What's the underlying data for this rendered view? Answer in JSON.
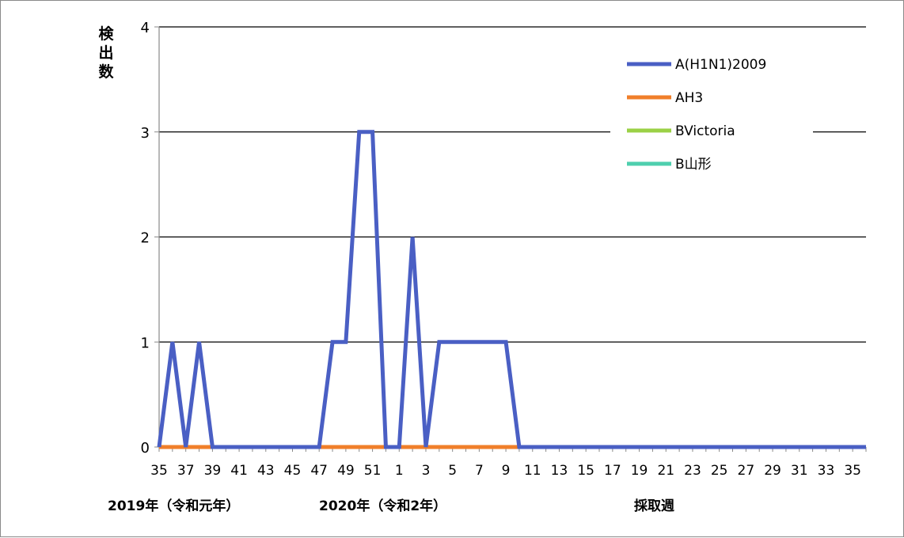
{
  "chart_data": {
    "type": "line",
    "ylabel": "検出数",
    "xlabel": "採取週",
    "year_labels": [
      "2019年（令和元年）",
      "2020年（令和2年）"
    ],
    "ylim": [
      0,
      4
    ],
    "yticks": [
      "0",
      "1",
      "2",
      "3",
      "4"
    ],
    "grid": true,
    "legend_position": "top-right",
    "x": [
      "35",
      "36",
      "37",
      "38",
      "39",
      "40",
      "41",
      "42",
      "43",
      "44",
      "45",
      "46",
      "47",
      "48",
      "49",
      "50",
      "51",
      "52",
      "1",
      "2",
      "3",
      "4",
      "5",
      "6",
      "7",
      "8",
      "9",
      "10",
      "11",
      "12",
      "13",
      "14",
      "15",
      "16",
      "17",
      "18",
      "19",
      "20",
      "21",
      "22",
      "23",
      "24",
      "25",
      "26",
      "27",
      "28",
      "29",
      "30",
      "31",
      "32",
      "33",
      "34",
      "35",
      "36"
    ],
    "xtick_labels": [
      "35",
      "",
      "37",
      "",
      "39",
      "",
      "41",
      "",
      "43",
      "",
      "45",
      "",
      "47",
      "",
      "49",
      "",
      "51",
      "",
      "1",
      "",
      "3",
      "",
      "5",
      "",
      "7",
      "",
      "9",
      "",
      "11",
      "",
      "13",
      "",
      "15",
      "",
      "17",
      "",
      "19",
      "",
      "21",
      "",
      "23",
      "",
      "25",
      "",
      "27",
      "",
      "29",
      "",
      "31",
      "",
      "33",
      "",
      "35",
      ""
    ],
    "series": [
      {
        "name": "A(H1N1)2009",
        "color": "#4a5fc4",
        "values": [
          0,
          1,
          0,
          1,
          0,
          0,
          0,
          0,
          0,
          0,
          0,
          0,
          0,
          1,
          1,
          3,
          3,
          0,
          0,
          2,
          0,
          1,
          1,
          1,
          1,
          1,
          1,
          0,
          0,
          0,
          0,
          0,
          0,
          0,
          0,
          0,
          0,
          0,
          0,
          0,
          0,
          0,
          0,
          0,
          0,
          0,
          0,
          0,
          0,
          0,
          0,
          0,
          0,
          0
        ]
      },
      {
        "name": "AH3",
        "color": "#f07f2a",
        "values": [
          0,
          0,
          0,
          0,
          0,
          0,
          0,
          0,
          0,
          0,
          0,
          0,
          0,
          0,
          0,
          0,
          0,
          0,
          0,
          0,
          0,
          0,
          0,
          0,
          0,
          0,
          0,
          0,
          0,
          0,
          0,
          0,
          0,
          0,
          0,
          0,
          0,
          0,
          0,
          0,
          0,
          0,
          0,
          0,
          0,
          0,
          0,
          0,
          0,
          0,
          0,
          0,
          0,
          0
        ]
      },
      {
        "name": "BVictoria",
        "color": "#9bd146",
        "values": [
          0,
          0,
          0,
          0,
          0,
          0,
          0,
          0,
          0,
          0,
          0,
          0,
          0,
          0,
          0,
          0,
          0,
          0,
          0,
          0,
          0,
          0,
          0,
          0,
          0,
          0,
          0,
          0,
          0,
          0,
          0,
          0,
          0,
          0,
          0,
          0,
          0,
          0,
          0,
          0,
          0,
          0,
          0,
          0,
          0,
          0,
          0,
          0,
          0,
          0,
          0,
          0,
          0,
          0
        ]
      },
      {
        "name": "B山形",
        "color": "#4ecfae",
        "values": [
          0,
          0,
          0,
          0,
          0,
          0,
          0,
          0,
          0,
          0,
          0,
          0,
          0,
          0,
          0,
          0,
          0,
          0,
          0,
          0,
          0,
          0,
          0,
          0,
          0,
          0,
          0,
          0,
          0,
          0,
          0,
          0,
          0,
          0,
          0,
          0,
          0,
          0,
          0,
          0,
          0,
          0,
          0,
          0,
          0,
          0,
          0,
          0,
          0,
          0,
          0,
          0,
          0,
          0
        ]
      }
    ]
  }
}
